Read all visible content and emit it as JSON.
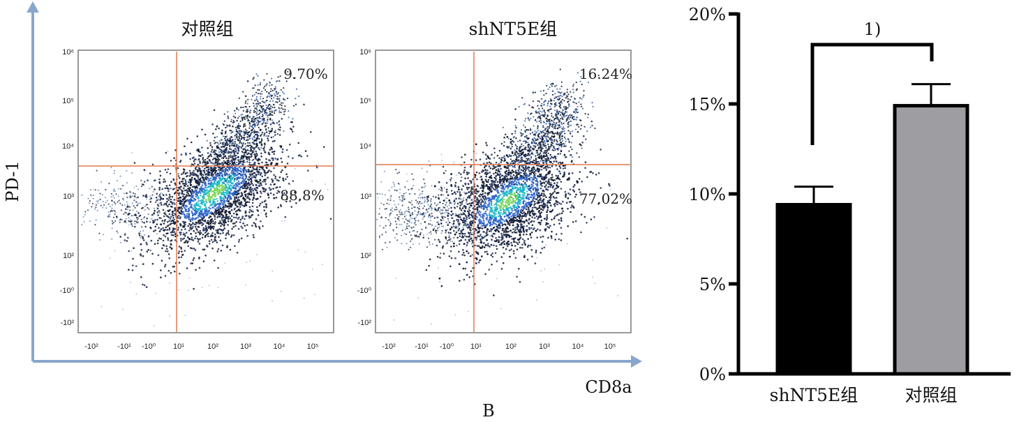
{
  "figure_label": "B",
  "chart_data": [
    {
      "type": "scatter",
      "title": "对照组",
      "xlabel": "CD8a",
      "ylabel": "PD-1",
      "x_ticks": [
        "-10²",
        "-10¹",
        "-10⁰",
        "10¹",
        "10²",
        "10³",
        "10⁴",
        "10⁵"
      ],
      "y_ticks": [
        "10⁶",
        "10⁵",
        "10⁴",
        "10³",
        "10²",
        "-10⁰",
        "-10²"
      ],
      "quadrants": [
        {
          "label": "9.70%",
          "value": 9.7,
          "position": "top-right"
        },
        {
          "label": "88.8%",
          "value": 88.8,
          "position": "bottom-right"
        }
      ]
    },
    {
      "type": "scatter",
      "title": "shNT5E组",
      "xlabel": "CD8a",
      "ylabel": "PD-1",
      "x_ticks": [
        "-10²",
        "-10¹",
        "-10⁰",
        "10¹",
        "10²",
        "10³",
        "10⁴",
        "10⁵"
      ],
      "y_ticks": [
        "10⁶",
        "10⁵",
        "10⁴",
        "10³",
        "10²",
        "-10⁰",
        "-10²"
      ],
      "quadrants": [
        {
          "label": "16.24%",
          "value": 16.24,
          "position": "top-right"
        },
        {
          "label": "77.02%",
          "value": 77.02,
          "position": "bottom-right"
        }
      ]
    },
    {
      "type": "bar",
      "categories": [
        "shNT5E组",
        "对照组"
      ],
      "values": [
        9.4,
        14.9
      ],
      "errors": [
        1.0,
        1.2
      ],
      "colors": [
        "#000000",
        "#9e9ea2"
      ],
      "ylim": [
        0,
        20
      ],
      "y_ticks": [
        "0%",
        "5%",
        "10%",
        "15%",
        "20%"
      ],
      "y_tick_values": [
        0,
        5,
        10,
        15,
        20
      ],
      "significance": "1)"
    }
  ]
}
